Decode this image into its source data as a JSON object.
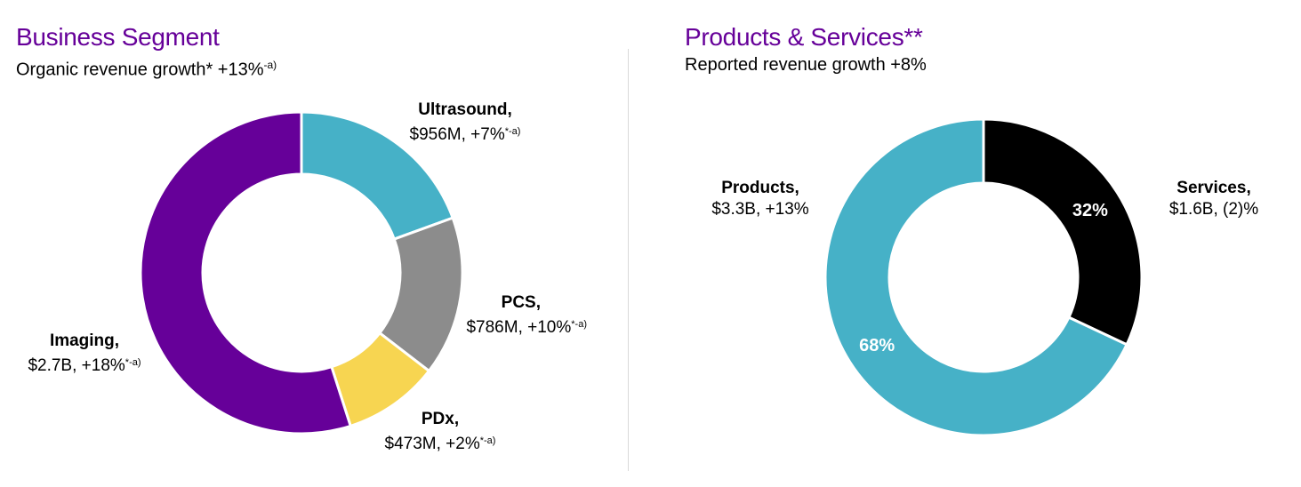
{
  "left_panel": {
    "title": "Business Segment",
    "subtitle_text": "Organic revenue growth* +13%",
    "subtitle_sup": "-a)"
  },
  "right_panel": {
    "title": "Products & Services**",
    "subtitle_text": "Reported revenue growth +8%"
  },
  "colors": {
    "title": "#660099",
    "imaging": "#660099",
    "ultrasound": "#46b1c7",
    "pcs": "#8c8c8c",
    "pdx": "#f7d551",
    "products": "#46b1c7",
    "services": "#000000",
    "divider": "#d9d9d9"
  },
  "chart_data": [
    {
      "type": "pie",
      "title": "Business Segment",
      "subtitle": "Organic revenue growth* +13%-a)",
      "slices": [
        {
          "name": "Ultrasound,",
          "value": 956,
          "value_label": "$956M, +7%",
          "growth_sup": "*-a)"
        },
        {
          "name": "PCS,",
          "value": 786,
          "value_label": "$786M, +10%",
          "growth_sup": "*-a)"
        },
        {
          "name": "PDx,",
          "value": 473,
          "value_label": "$473M, +2%",
          "growth_sup": "*-a)"
        },
        {
          "name": "Imaging,",
          "value": 2700,
          "value_label": "$2.7B, +18%",
          "growth_sup": "*-a)"
        }
      ]
    },
    {
      "type": "pie",
      "title": "Products & Services**",
      "subtitle": "Reported revenue growth +8%",
      "slices": [
        {
          "name": "Services,",
          "value": 32,
          "value_label": "$1.6B, (2)%",
          "percent_label": "32%"
        },
        {
          "name": "Products,",
          "value": 68,
          "value_label": "$3.3B, +13%",
          "percent_label": "68%"
        }
      ]
    }
  ]
}
